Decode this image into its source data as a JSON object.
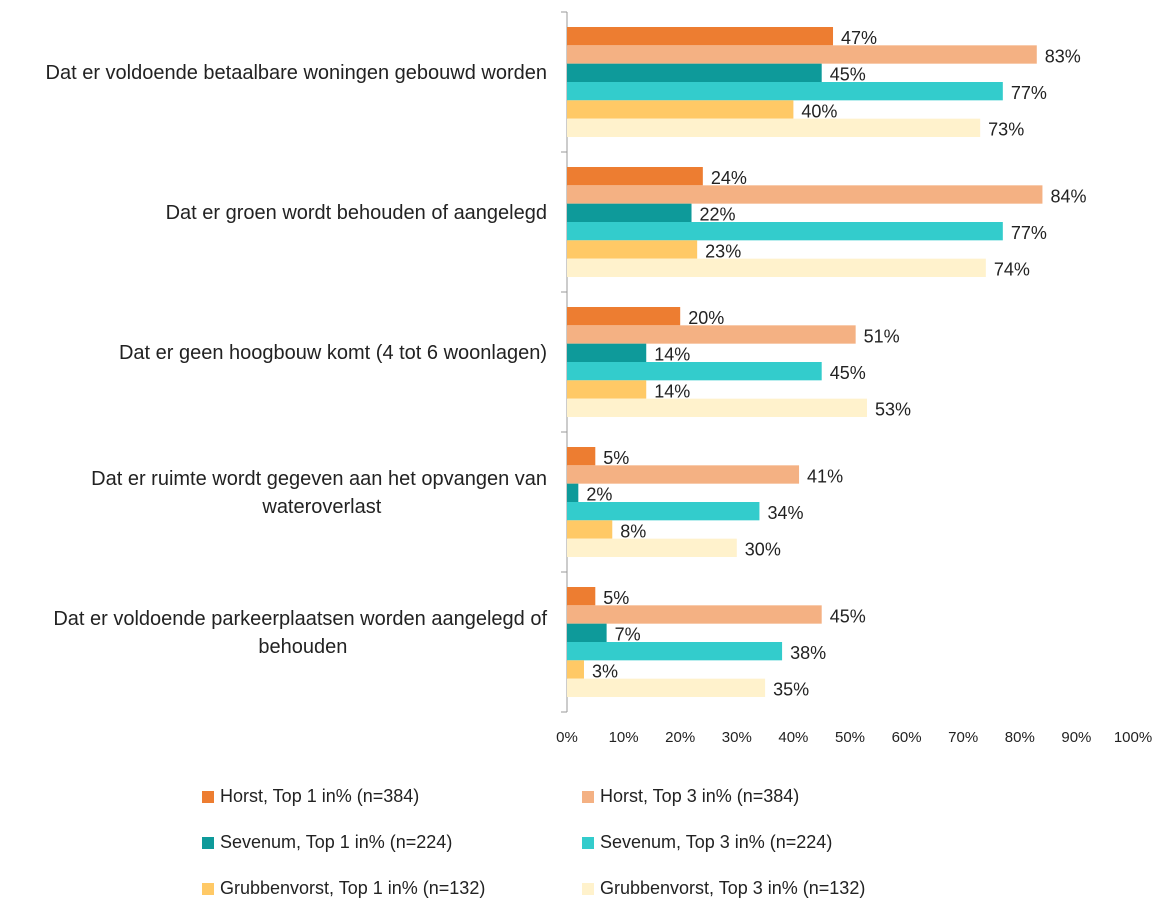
{
  "chart_data": {
    "type": "hbar",
    "categories": [
      "Dat er voldoende betaalbare woningen gebouwd worden",
      "Dat er groen wordt behouden of aangelegd",
      "Dat er geen hoogbouw komt (4 tot 6 woonlagen)",
      "Dat er ruimte wordt gegeven aan het opvangen van wateroverlast",
      "Dat er voldoende parkeerplaatsen worden aangelegd of behouden"
    ],
    "series": [
      {
        "name": "Horst, Top 1 in% (n=384)",
        "color": "#ED7D31",
        "values": [
          47,
          24,
          20,
          5,
          5
        ],
        "value_labels": [
          "47%",
          "24%",
          "20%",
          "5%",
          "5%"
        ]
      },
      {
        "name": "Horst, Top 3 in% (n=384)",
        "color": "#F4B183",
        "values": [
          83,
          84,
          51,
          41,
          45
        ],
        "value_labels": [
          "83%",
          "84%",
          "51%",
          "41%",
          "45%"
        ]
      },
      {
        "name": "Sevenum, Top 1 in% (n=224)",
        "color": "#0E9A9A",
        "values": [
          45,
          22,
          14,
          2,
          7
        ],
        "value_labels": [
          "45%",
          "22%",
          "14%",
          "2%",
          "7%"
        ]
      },
      {
        "name": "Sevenum, Top 3 in% (n=224)",
        "color": "#33CCCC",
        "values": [
          77,
          77,
          45,
          34,
          38
        ],
        "value_labels": [
          "77%",
          "77%",
          "45%",
          "34%",
          "38%"
        ]
      },
      {
        "name": "Grubbenvorst, Top 1 in% (n=132)",
        "color": "#FFC966",
        "values": [
          40,
          23,
          14,
          8,
          3
        ],
        "value_labels": [
          "40%",
          "23%",
          "14%",
          "8%",
          "3%"
        ]
      },
      {
        "name": "Grubbenvorst, Top 3 in% (n=132)",
        "color": "#FFF2CC",
        "values": [
          73,
          74,
          53,
          30,
          35
        ],
        "value_labels": [
          "73%",
          "74%",
          "53%",
          "30%",
          "35%"
        ]
      }
    ],
    "xlim": [
      0,
      100
    ],
    "xticks": [
      {
        "value": 0,
        "label": "0%"
      },
      {
        "value": 10,
        "label": "10%"
      },
      {
        "value": 20,
        "label": "20%"
      },
      {
        "value": 30,
        "label": "30%"
      },
      {
        "value": 40,
        "label": "40%"
      },
      {
        "value": 50,
        "label": "50%"
      },
      {
        "value": 60,
        "label": "60%"
      },
      {
        "value": 70,
        "label": "70%"
      },
      {
        "value": 80,
        "label": "80%"
      },
      {
        "value": 90,
        "label": "90%"
      },
      {
        "value": 100,
        "label": "100%"
      }
    ],
    "grid": false
  }
}
